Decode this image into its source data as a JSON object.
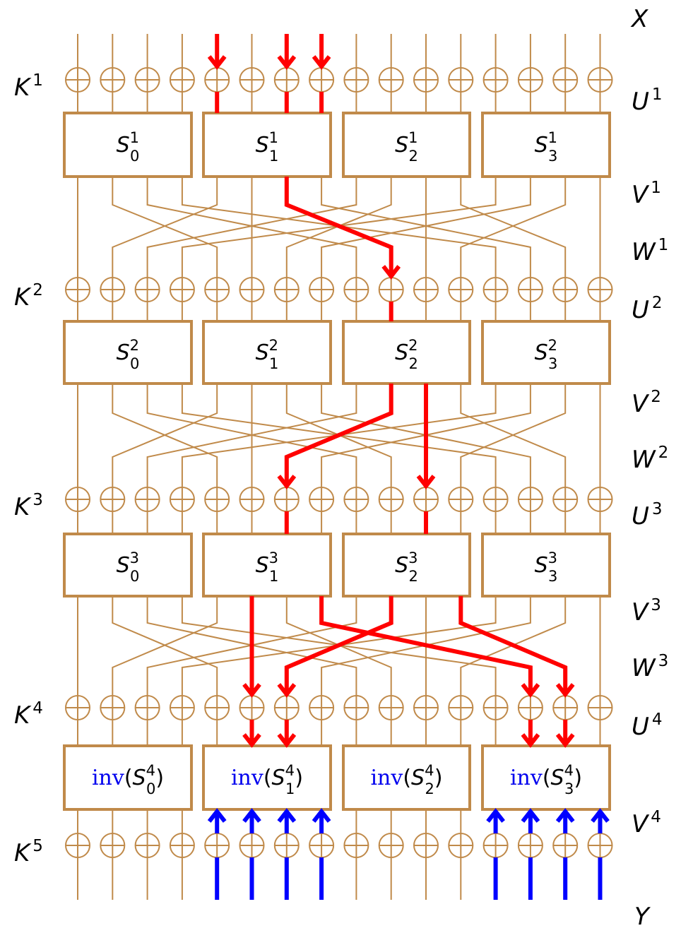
{
  "colors": {
    "wire": "#c08a4a",
    "box_border": "#c08a4a",
    "active_path": "#ff0000",
    "known_output": "#0000ff",
    "inv_keyword": "#0000ee"
  },
  "icons": {
    "xor": "circled-plus-xor-icon",
    "arrow": "arrowhead-icon"
  },
  "labels": {
    "input": "X",
    "output": "Y",
    "rows": [
      {
        "base": "K",
        "sup": "1"
      },
      {
        "base": "K",
        "sup": "2"
      },
      {
        "base": "K",
        "sup": "3"
      },
      {
        "base": "K",
        "sup": "4"
      },
      {
        "base": "K",
        "sup": "5"
      }
    ],
    "right": [
      {
        "base": "U",
        "sup": "1"
      },
      {
        "base": "V",
        "sup": "1"
      },
      {
        "base": "W",
        "sup": "1"
      },
      {
        "base": "U",
        "sup": "2"
      },
      {
        "base": "V",
        "sup": "2"
      },
      {
        "base": "W",
        "sup": "2"
      },
      {
        "base": "U",
        "sup": "3"
      },
      {
        "base": "V",
        "sup": "3"
      },
      {
        "base": "W",
        "sup": "3"
      },
      {
        "base": "U",
        "sup": "4"
      },
      {
        "base": "V",
        "sup": "4"
      }
    ]
  },
  "sboxes": [
    [
      {
        "base": "S",
        "sub": "0",
        "sup": "1"
      },
      {
        "base": "S",
        "sub": "1",
        "sup": "1"
      },
      {
        "base": "S",
        "sub": "2",
        "sup": "1"
      },
      {
        "base": "S",
        "sub": "3",
        "sup": "1"
      }
    ],
    [
      {
        "base": "S",
        "sub": "0",
        "sup": "2"
      },
      {
        "base": "S",
        "sub": "1",
        "sup": "2"
      },
      {
        "base": "S",
        "sub": "2",
        "sup": "2"
      },
      {
        "base": "S",
        "sub": "3",
        "sup": "2"
      }
    ],
    [
      {
        "base": "S",
        "sub": "0",
        "sup": "3"
      },
      {
        "base": "S",
        "sub": "1",
        "sup": "3"
      },
      {
        "base": "S",
        "sub": "2",
        "sup": "3"
      },
      {
        "base": "S",
        "sub": "3",
        "sup": "3"
      }
    ],
    [
      {
        "prefix": "inv",
        "base": "S",
        "sub": "0",
        "sup": "4"
      },
      {
        "prefix": "inv",
        "base": "S",
        "sub": "1",
        "sup": "4"
      },
      {
        "prefix": "inv",
        "base": "S",
        "sub": "2",
        "sup": "4"
      },
      {
        "prefix": "inv",
        "base": "S",
        "sub": "3",
        "sup": "4"
      }
    ]
  ],
  "active_input_bits": [
    4,
    6,
    7
  ],
  "active_segments": [
    {
      "from": "S1-out",
      "bit": 6,
      "to": "U2-in",
      "bit_to": 9
    },
    {
      "from": "S2-out",
      "bit": 9,
      "to": "U3-in",
      "bit_to": 6
    },
    {
      "from": "S2-out",
      "bit": 10,
      "to": "U3-in",
      "bit_to": 10
    },
    {
      "from": "S3-out",
      "bit": 5,
      "to": "U4-in",
      "bit_to": 5
    },
    {
      "from": "S3-out",
      "bit": 7,
      "to": "U4-in",
      "bit_to": 13
    },
    {
      "from": "S3-out",
      "bit": 9,
      "to": "U4-in",
      "bit_to": 6
    },
    {
      "from": "S3-out",
      "bit": 11,
      "to": "U4-in",
      "bit_to": 14
    }
  ],
  "known_output_bits": [
    4,
    5,
    6,
    7,
    12,
    13,
    14,
    15
  ]
}
